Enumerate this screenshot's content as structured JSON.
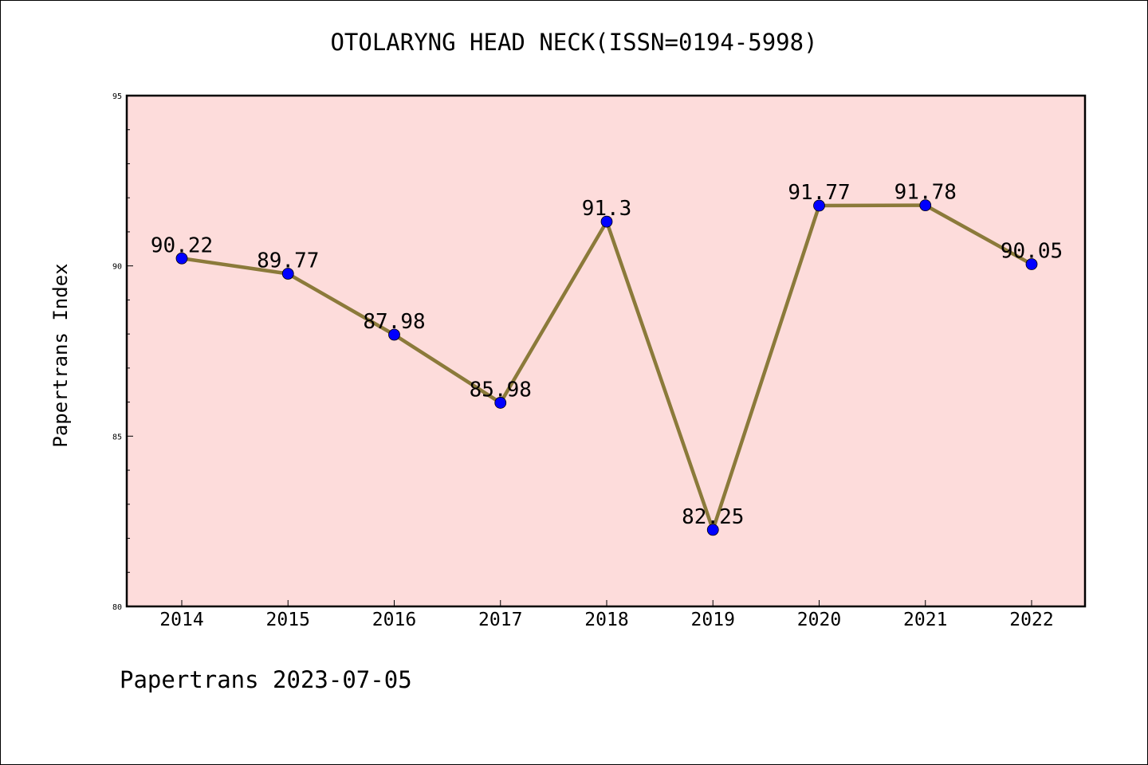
{
  "chart_data": {
    "type": "line",
    "title": "OTOLARYNG HEAD NECK(ISSN=0194-5998)",
    "xlabel": "",
    "ylabel": "Papertrans Index",
    "footer": "Papertrans 2023-07-05",
    "categories": [
      "2014",
      "2015",
      "2016",
      "2017",
      "2018",
      "2019",
      "2020",
      "2021",
      "2022"
    ],
    "series": [
      {
        "values": [
          90.22,
          89.77,
          87.98,
          85.98,
          91.3,
          82.25,
          91.77,
          91.78,
          90.05
        ],
        "labels": [
          "90.22",
          "89.77",
          "87.98",
          "85.98",
          "91.3",
          "82.25",
          "91.77",
          "91.78",
          "90.05"
        ],
        "line_color": "#8b7a3a",
        "marker_color": "#0000ff"
      }
    ],
    "ylim": [
      80,
      95
    ],
    "yticks": [
      80,
      85,
      90,
      95
    ],
    "ytick_labels": [
      "80",
      "85",
      "90",
      "95"
    ],
    "grid": false,
    "colors": {
      "plot_background": "#fddcdb",
      "axes": "#000000"
    }
  }
}
